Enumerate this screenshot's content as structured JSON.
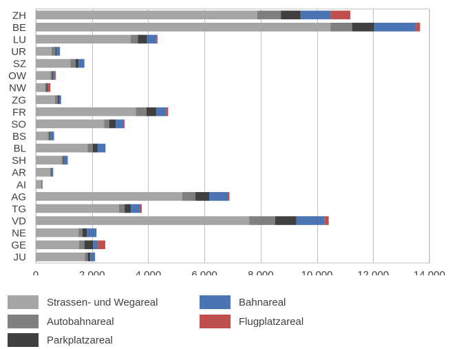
{
  "chart_data": {
    "type": "bar",
    "orientation": "horizontal",
    "stacked": true,
    "title": "",
    "xlabel": "",
    "ylabel": "",
    "categories": [
      "ZH",
      "BE",
      "LU",
      "UR",
      "SZ",
      "OW",
      "NW",
      "ZG",
      "FR",
      "SO",
      "BS",
      "BL",
      "SH",
      "AR",
      "AI",
      "AG",
      "TG",
      "VD",
      "NE",
      "GE",
      "JU"
    ],
    "xlim": [
      0,
      14000
    ],
    "x_ticks": [
      0,
      2000,
      4000,
      6000,
      8000,
      10000,
      12000,
      14000
    ],
    "x_tick_labels": [
      "0",
      "2 000",
      "4 000",
      "6 000",
      "8 000",
      "10 000",
      "12 000",
      "14 000"
    ],
    "grid": "vertical",
    "legend_position": "bottom",
    "series": [
      {
        "name": "Strassen- und Wegareal",
        "color": "#a5a5a5",
        "values": [
          7880,
          10480,
          3370,
          560,
          1230,
          520,
          330,
          680,
          3560,
          2430,
          430,
          1840,
          920,
          510,
          200,
          5210,
          2960,
          7590,
          1520,
          1540,
          1740
        ]
      },
      {
        "name": "Autobahnareal",
        "color": "#7f7f7f",
        "values": [
          840,
          770,
          260,
          140,
          190,
          60,
          50,
          100,
          380,
          180,
          60,
          190,
          50,
          40,
          10,
          470,
          200,
          920,
          140,
          190,
          110
        ]
      },
      {
        "name": "Parkplatzareal",
        "color": "#404040",
        "values": [
          700,
          780,
          330,
          40,
          100,
          40,
          40,
          50,
          350,
          230,
          30,
          170,
          30,
          20,
          10,
          490,
          220,
          760,
          160,
          310,
          90
        ]
      },
      {
        "name": "Bahnareal",
        "color": "#4a74b3",
        "values": [
          1070,
          1490,
          330,
          120,
          210,
          60,
          20,
          70,
          340,
          280,
          130,
          280,
          140,
          50,
          20,
          670,
          340,
          990,
          340,
          170,
          170
        ]
      },
      {
        "name": "Flugplatzareal",
        "color": "#c0504d",
        "values": [
          700,
          150,
          40,
          0,
          0,
          30,
          80,
          0,
          80,
          40,
          0,
          0,
          0,
          0,
          0,
          50,
          50,
          160,
          0,
          260,
          0
        ]
      }
    ]
  }
}
